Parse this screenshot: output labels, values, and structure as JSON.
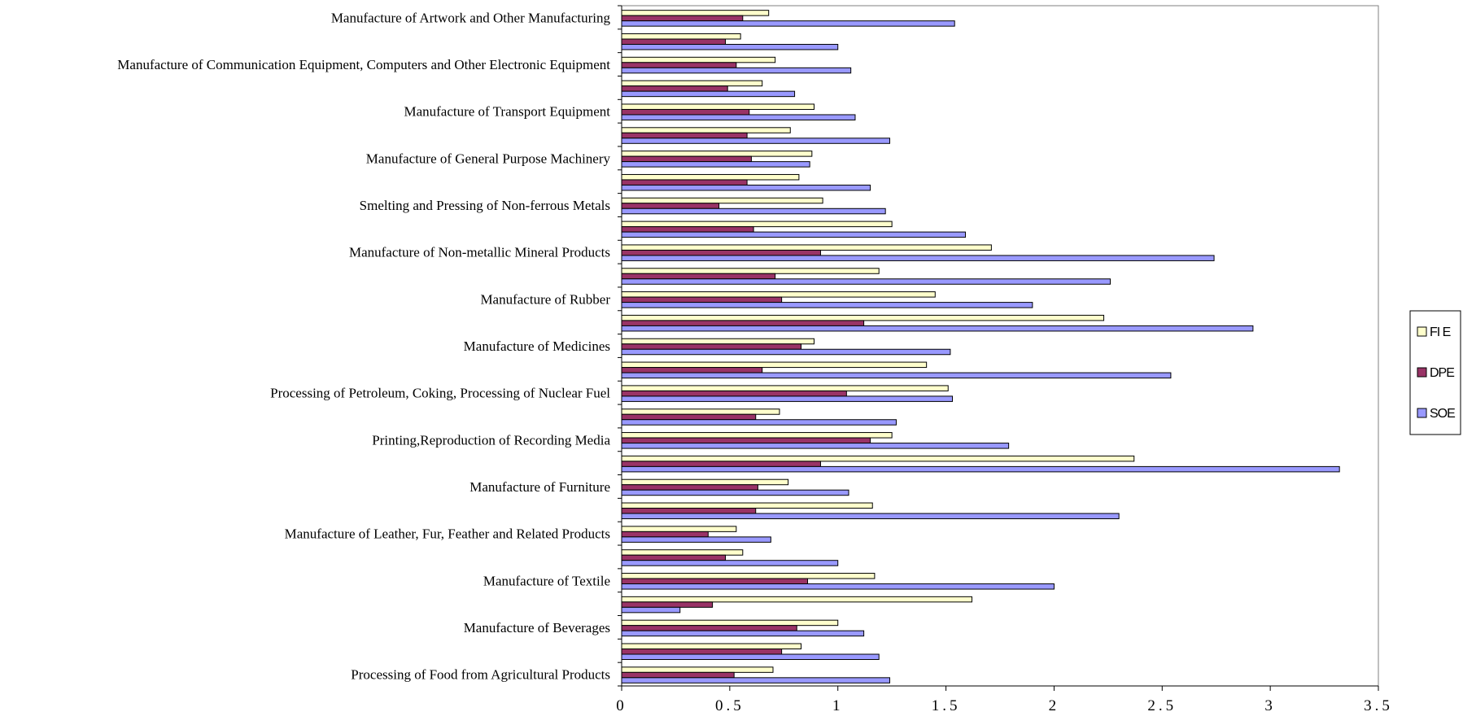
{
  "chart_data": {
    "type": "bar",
    "orientation": "horizontal",
    "title": "",
    "xlabel": "",
    "ylabel": "",
    "xlim": [
      0,
      3.5
    ],
    "x_ticks": [
      "0",
      "0.5",
      "1",
      "1.5",
      "2",
      "2.5",
      "3",
      "3.5"
    ],
    "grid": false,
    "legend_position": "right",
    "categories": [
      "Processing of Food from Agricultural Products",
      "",
      "Manufacture of  Beverages",
      "",
      "Manufacture of  Textile",
      "",
      "Manufacture of  Leather, Fur, Feather and Related Products",
      "",
      "Manufacture of Furniture",
      "",
      "Printing,Reproduction of Recording Media",
      "",
      "Processing of Petroleum, Coking, Processing of Nuclear Fuel",
      "",
      "Manufacture of Medicines",
      "",
      "Manufacture of Rubber",
      "",
      "Manufacture of Non-metallic Mineral Products",
      "",
      "Smelting and Pressing of Non-ferrous Metals",
      "",
      "Manufacture of General Purpose Machinery",
      "",
      "Manufacture of  Transport Equipment",
      "",
      "Manufacture of Communication Equipment, Computers and Other Electronic Equipment",
      "",
      "Manufacture of Artwork and Other Manufacturing"
    ],
    "series": [
      {
        "name": "FI E",
        "color": "#FFFFCC",
        "values": [
          0.7,
          0.83,
          1.0,
          1.62,
          1.17,
          0.56,
          0.53,
          1.16,
          0.77,
          2.37,
          1.25,
          0.73,
          1.51,
          1.41,
          0.89,
          2.23,
          1.45,
          1.19,
          1.71,
          1.25,
          0.93,
          0.82,
          0.88,
          0.78,
          0.89,
          0.65,
          0.71,
          0.55,
          0.68
        ]
      },
      {
        "name": "DPE",
        "color": "#993366",
        "values": [
          0.52,
          0.74,
          0.81,
          0.42,
          0.86,
          0.48,
          0.4,
          0.62,
          0.63,
          0.92,
          1.15,
          0.62,
          1.04,
          0.65,
          0.83,
          1.12,
          0.74,
          0.71,
          0.92,
          0.61,
          0.45,
          0.58,
          0.6,
          0.58,
          0.59,
          0.49,
          0.53,
          0.48,
          0.56
        ]
      },
      {
        "name": "SOE",
        "color": "#9999FF",
        "values": [
          1.24,
          1.19,
          1.12,
          0.27,
          2.0,
          1.0,
          0.69,
          2.3,
          1.05,
          3.32,
          1.79,
          1.27,
          1.53,
          2.54,
          1.52,
          2.92,
          1.9,
          2.26,
          2.74,
          1.59,
          1.22,
          1.15,
          0.87,
          1.24,
          1.08,
          0.8,
          1.06,
          1.0,
          1.54
        ]
      }
    ]
  }
}
